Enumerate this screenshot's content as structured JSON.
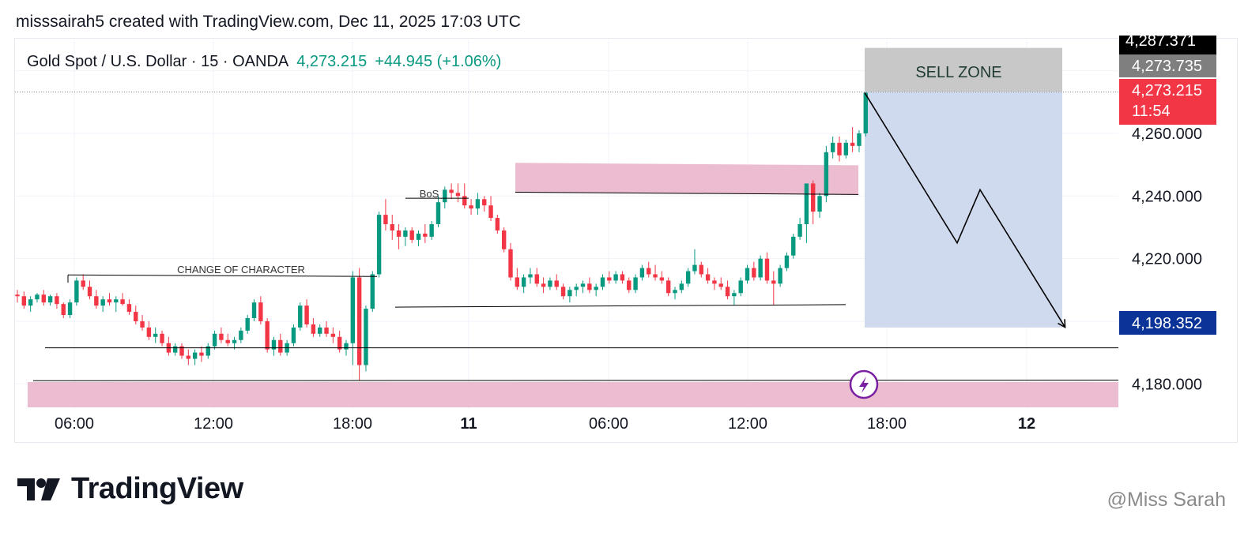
{
  "header": {
    "snapshot_text": "misssairah5 created with TradingView.com, Dec 11, 2025 17:03 UTC"
  },
  "symbol": {
    "name": "Gold Spot / U.S. Dollar · 15 · OANDA",
    "last": "4,273.215",
    "change": "+44.945 (+1.06%)"
  },
  "price_badges": {
    "top": "4,287.371",
    "high": "4,273.735",
    "last": "4,273.215",
    "countdown": "11:54",
    "target": "4,198.352"
  },
  "annotations": {
    "sell_zone": "SELL ZONE",
    "bos": "BoS",
    "choch": "CHANGE OF CHARACTER"
  },
  "branding": {
    "logo_text": "TradingView",
    "watermark": "@Miss Sarah"
  },
  "colors": {
    "up": "#089981",
    "down": "#f23645",
    "zone_pink": "#ecbdd0",
    "projection_blue": "#c8d3ec",
    "sell_zone_gray": "#c8c8c8",
    "badge_black": "#000000",
    "badge_gray": "#7f7f7f",
    "badge_red": "#f23645",
    "badge_navy": "#0b3398",
    "lightning_purple": "#7b1fa2"
  },
  "chart_data": {
    "type": "candlestick",
    "x_ticks": [
      "06:00",
      "12:00",
      "18:00",
      "11",
      "06:00",
      "12:00",
      "18:00",
      "12"
    ],
    "y_ticks": [
      "4,260.000",
      "4,240.000",
      "4,220.000",
      "4,180.000"
    ],
    "ylim": [
      4172,
      4290
    ],
    "grid": true,
    "last_price": 4273.215,
    "series": [
      {
        "ohlc": [
          [
            4208.5,
            4210,
            4206,
            4208
          ],
          [
            4208,
            4209.5,
            4204,
            4205
          ],
          [
            4205,
            4208,
            4203,
            4207
          ],
          [
            4207,
            4209,
            4206,
            4208.5
          ],
          [
            4208.5,
            4210,
            4205,
            4206
          ],
          [
            4206,
            4208.5,
            4205,
            4208
          ],
          [
            4208,
            4209,
            4204,
            4205.5
          ],
          [
            4205.5,
            4206,
            4201,
            4202
          ],
          [
            4202,
            4207,
            4201,
            4206
          ],
          [
            4206,
            4214,
            4205,
            4213
          ],
          [
            4213,
            4215,
            4210,
            4211
          ],
          [
            4211,
            4213,
            4207,
            4208
          ],
          [
            4208,
            4210,
            4204,
            4205
          ],
          [
            4205,
            4208,
            4203,
            4207
          ],
          [
            4207,
            4209,
            4205,
            4206
          ],
          [
            4206,
            4208,
            4203,
            4207
          ],
          [
            4207,
            4209,
            4205,
            4205.5
          ],
          [
            4205.5,
            4207,
            4202,
            4203
          ],
          [
            4203,
            4205,
            4199,
            4200
          ],
          [
            4200,
            4202,
            4197,
            4198
          ],
          [
            4198,
            4200,
            4194,
            4195
          ],
          [
            4195,
            4198,
            4193,
            4196
          ],
          [
            4196,
            4197,
            4192,
            4193
          ],
          [
            4193,
            4195,
            4189,
            4190
          ],
          [
            4190,
            4193,
            4189,
            4192
          ],
          [
            4192,
            4193,
            4188,
            4189
          ],
          [
            4189,
            4191,
            4186,
            4188
          ],
          [
            4188,
            4191,
            4186,
            4190
          ],
          [
            4190,
            4192,
            4187,
            4189
          ],
          [
            4189,
            4193,
            4188,
            4192
          ],
          [
            4192,
            4197,
            4191,
            4196
          ],
          [
            4196,
            4198,
            4193,
            4194
          ],
          [
            4194,
            4196,
            4192,
            4193
          ],
          [
            4193,
            4195,
            4191,
            4194
          ],
          [
            4194,
            4198,
            4193,
            4197
          ],
          [
            4197,
            4202,
            4196,
            4201
          ],
          [
            4201,
            4207,
            4200,
            4206
          ],
          [
            4206,
            4208,
            4199,
            4200
          ],
          [
            4200,
            4201,
            4190,
            4191
          ],
          [
            4191,
            4195,
            4189,
            4194
          ],
          [
            4194,
            4196,
            4189,
            4190
          ],
          [
            4190,
            4194,
            4189,
            4193
          ],
          [
            4193,
            4199,
            4192,
            4198
          ],
          [
            4198,
            4206,
            4197,
            4205
          ],
          [
            4205,
            4207,
            4198,
            4199
          ],
          [
            4199,
            4201,
            4195,
            4196
          ],
          [
            4196,
            4199,
            4195,
            4198
          ],
          [
            4198,
            4200,
            4195,
            4196
          ],
          [
            4196,
            4198,
            4193,
            4195
          ],
          [
            4195,
            4197,
            4190,
            4191
          ],
          [
            4191,
            4194,
            4189,
            4193
          ],
          [
            4193,
            4216,
            4186,
            4214
          ],
          [
            4214,
            4217,
            4181,
            4186
          ],
          [
            4186,
            4205,
            4184,
            4204
          ],
          [
            4204,
            4216,
            4203,
            4215
          ],
          [
            4215,
            4235,
            4214,
            4234
          ],
          [
            4234,
            4239,
            4229,
            4231
          ],
          [
            4231,
            4234,
            4226,
            4229
          ],
          [
            4229,
            4231,
            4223,
            4227
          ],
          [
            4227,
            4230,
            4224,
            4229
          ],
          [
            4229,
            4230,
            4225,
            4226
          ],
          [
            4226,
            4229,
            4224,
            4228
          ],
          [
            4228,
            4231,
            4225,
            4227
          ],
          [
            4227,
            4232,
            4226,
            4231
          ],
          [
            4231,
            4240,
            4230,
            4238
          ],
          [
            4238,
            4243,
            4236,
            4242
          ],
          [
            4242,
            4244,
            4239,
            4241
          ],
          [
            4241,
            4244,
            4238,
            4240
          ],
          [
            4240,
            4244,
            4236,
            4237
          ],
          [
            4237,
            4239,
            4234,
            4236
          ],
          [
            4236,
            4241,
            4234,
            4239
          ],
          [
            4239,
            4240,
            4235,
            4237
          ],
          [
            4237,
            4240,
            4232,
            4233
          ],
          [
            4233,
            4234,
            4228,
            4229
          ],
          [
            4229,
            4230,
            4222,
            4223
          ],
          [
            4223,
            4225,
            4213,
            4214
          ],
          [
            4214,
            4217,
            4210,
            4211
          ],
          [
            4211,
            4215,
            4209,
            4214
          ],
          [
            4214,
            4217,
            4212,
            4215
          ],
          [
            4215,
            4217,
            4211,
            4212
          ],
          [
            4212,
            4214,
            4209,
            4211
          ],
          [
            4211,
            4214,
            4210,
            4213
          ],
          [
            4213,
            4215,
            4210,
            4211
          ],
          [
            4211,
            4212,
            4207,
            4208
          ],
          [
            4208,
            4211,
            4206,
            4210
          ],
          [
            4210,
            4212,
            4208,
            4211
          ],
          [
            4211,
            4213,
            4209,
            4212
          ],
          [
            4212,
            4214,
            4209,
            4210
          ],
          [
            4210,
            4212,
            4208,
            4211
          ],
          [
            4211,
            4215,
            4210,
            4214
          ],
          [
            4214,
            4216,
            4212,
            4213
          ],
          [
            4213,
            4216,
            4212,
            4215
          ],
          [
            4215,
            4216,
            4212,
            4213
          ],
          [
            4213,
            4214,
            4209,
            4210
          ],
          [
            4210,
            4215,
            4209,
            4214
          ],
          [
            4214,
            4218,
            4213,
            4217
          ],
          [
            4217,
            4219,
            4214,
            4215
          ],
          [
            4215,
            4218,
            4213,
            4214
          ],
          [
            4214,
            4216,
            4212,
            4213
          ],
          [
            4213,
            4214,
            4208,
            4209
          ],
          [
            4209,
            4211,
            4207,
            4210
          ],
          [
            4210,
            4213,
            4209,
            4212
          ],
          [
            4212,
            4217,
            4211,
            4216
          ],
          [
            4216,
            4223,
            4215,
            4218
          ],
          [
            4218,
            4219,
            4214,
            4215
          ],
          [
            4215,
            4217,
            4212,
            4213
          ],
          [
            4213,
            4214,
            4210,
            4212
          ],
          [
            4212,
            4214,
            4210,
            4211
          ],
          [
            4211,
            4213,
            4207,
            4208
          ],
          [
            4208,
            4210,
            4205,
            4209
          ],
          [
            4209,
            4214,
            4208,
            4213
          ],
          [
            4213,
            4218,
            4212,
            4217
          ],
          [
            4217,
            4219,
            4213,
            4214
          ],
          [
            4214,
            4221,
            4213,
            4220
          ],
          [
            4220,
            4222,
            4212,
            4213
          ],
          [
            4213,
            4216,
            4205,
            4212
          ],
          [
            4212,
            4218,
            4211,
            4217
          ],
          [
            4217,
            4222,
            4216,
            4221
          ],
          [
            4221,
            4228,
            4220,
            4227
          ],
          [
            4227,
            4233,
            4226,
            4231
          ],
          [
            4231,
            4244,
            4225,
            4244
          ],
          [
            4244,
            4245,
            4231,
            4235
          ],
          [
            4235,
            4241,
            4233,
            4240
          ],
          [
            4240,
            4256,
            4238,
            4254
          ],
          [
            4254,
            4259,
            4252,
            4257
          ],
          [
            4257,
            4259,
            4251,
            4253
          ],
          [
            4253,
            4258,
            4252,
            4257
          ],
          [
            4257,
            4262,
            4254,
            4256
          ],
          [
            4256,
            4261,
            4254,
            4260
          ],
          [
            4260,
            4273,
            4259,
            4273
          ]
        ]
      }
    ]
  }
}
